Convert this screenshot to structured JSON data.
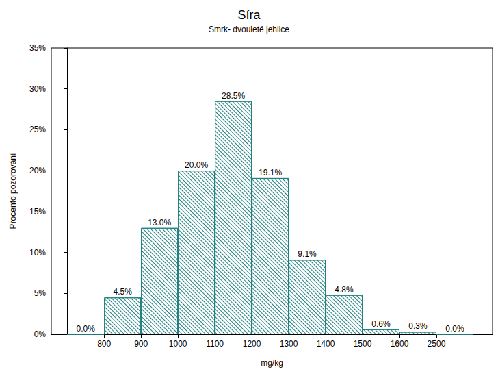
{
  "chart_data": {
    "type": "histogram",
    "title": "Síra",
    "subtitle": "Smrk- dvouleté jehlice",
    "x_label": "mg/kg",
    "y_label": "Procento pozorování",
    "bins": [
      null,
      800,
      900,
      1000,
      1100,
      1200,
      1300,
      1400,
      1500,
      1600,
      2500,
      null
    ],
    "values": [
      0.0,
      4.5,
      13.0,
      20.0,
      28.5,
      19.1,
      9.1,
      4.8,
      0.6,
      0.3,
      0.0
    ],
    "value_labels": [
      "0.0%",
      "4.5%",
      "13.0%",
      "20.0%",
      "28.5%",
      "19.1%",
      "9.1%",
      "4.8%",
      "0.6%",
      "0.3%",
      "0.0%"
    ],
    "color": "#1f8080",
    "ylim": [
      0,
      35
    ],
    "yticks": [
      {
        "value": 0,
        "label": "0%"
      },
      {
        "value": 5,
        "label": "5%"
      },
      {
        "value": 10,
        "label": "10%"
      },
      {
        "value": 15,
        "label": "15%"
      },
      {
        "value": 20,
        "label": "20%"
      },
      {
        "value": 25,
        "label": "25%"
      },
      {
        "value": 30,
        "label": "30%"
      },
      {
        "value": 35,
        "label": "35%"
      }
    ],
    "grid": false,
    "data_labels": true
  }
}
